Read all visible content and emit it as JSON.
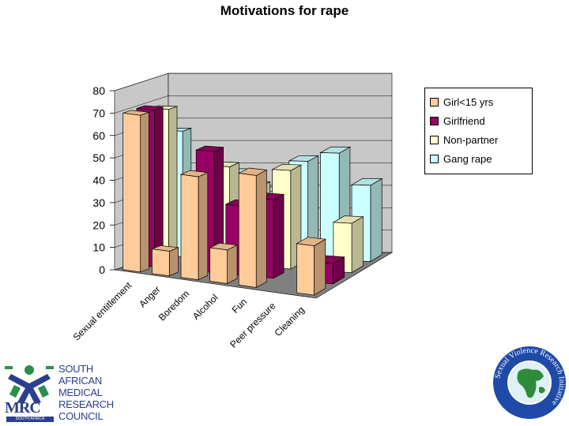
{
  "chart_data": {
    "type": "bar",
    "title": "Motivations for rape",
    "categories": [
      "Sexual entitlement",
      "Anger",
      "Boredom",
      "Alcohol",
      "Fun",
      "Peer pressure",
      "Cleaning"
    ],
    "series": [
      {
        "name": "Girl<15 yrs",
        "values": [
          70,
          11,
          46,
          15,
          50,
          0,
          22
        ]
      },
      {
        "name": "Girlfriend",
        "values": [
          70,
          0,
          54,
          31,
          35,
          0,
          9
        ]
      },
      {
        "name": "Non-partner",
        "values": [
          68,
          0,
          44,
          36,
          44,
          0,
          22
        ]
      },
      {
        "name": "Gang rape",
        "values": [
          56,
          0,
          38,
          30,
          44,
          48,
          34
        ]
      }
    ],
    "xlabel": "",
    "ylabel": "",
    "ylim": [
      0,
      80
    ],
    "yticks": [
      "0",
      "10",
      "20",
      "30",
      "40",
      "50",
      "60",
      "70",
      "80"
    ],
    "grid": true,
    "legend_position": "right",
    "series_colors": [
      "#ffcc99",
      "#990066",
      "#ffffcc",
      "#ccffff"
    ]
  },
  "logos": {
    "mrc": {
      "letters": "MRC",
      "sa_bar": "SOUTH AFRICA",
      "words": [
        "SOUTH",
        "AFRICAN",
        "MEDICAL",
        "RESEARCH",
        "COUNCIL"
      ]
    },
    "svri": {
      "text": "Sexual Violence Research Initiative"
    }
  }
}
